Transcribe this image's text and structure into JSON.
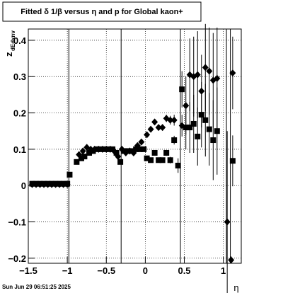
{
  "chart_data": {
    "type": "scatter",
    "title": "Fitted δ 1/β versus η and p for Global kaon+",
    "x_label": "η",
    "y_label": "z",
    "y_label_sub": "dEdxnv",
    "footer": "Sun Jun 29 06:51:25 2025",
    "xlim": [
      -1.5,
      1.23
    ],
    "ylim": [
      -0.214,
      0.431
    ],
    "xticks": [
      {
        "value": -1.5,
        "label": "−1.5"
      },
      {
        "value": -1,
        "label": "−1"
      },
      {
        "value": -0.5,
        "label": "−0.5"
      },
      0,
      0.5,
      1
    ],
    "yticks": [
      {
        "value": -0.2,
        "label": "−0.2"
      },
      {
        "value": -0.1,
        "label": "−0.1"
      },
      0,
      0.1,
      0.2,
      0.3,
      0.4
    ],
    "grid": true,
    "vlines": [
      -0.98,
      -0.31,
      0.45,
      1.04,
      1.09
    ],
    "series": [
      {
        "marker": "square",
        "color": "#000000",
        "x": [
          -1.45,
          -1.4,
          -1.35,
          -1.3,
          -1.25,
          -1.2,
          -1.15,
          -1.1,
          -1.05,
          -1.0,
          -0.97,
          -0.88,
          -0.82,
          -0.78,
          -0.72,
          -0.67,
          -0.62,
          -0.57,
          -0.52,
          -0.47,
          -0.42,
          -0.37,
          -0.32,
          -0.27,
          -0.22,
          -0.17,
          -0.12,
          -0.07,
          -0.02,
          0.02,
          0.07,
          0.12,
          0.17,
          0.22,
          0.27,
          0.32,
          0.37,
          0.42,
          0.47,
          0.52,
          0.57,
          0.62,
          0.67,
          0.72,
          0.77,
          0.82,
          0.87,
          0.92,
          1.12
        ],
        "values": [
          0.005,
          0.005,
          0.005,
          0.005,
          0.005,
          0.005,
          0.005,
          0.005,
          0.005,
          0.005,
          0.03,
          0.065,
          0.075,
          0.08,
          0.09,
          0.095,
          0.1,
          0.1,
          0.1,
          0.1,
          0.1,
          0.09,
          0.065,
          0.095,
          0.095,
          0.095,
          0.1,
          0.1,
          0.1,
          0.075,
          0.07,
          0.09,
          0.07,
          0.07,
          0.09,
          0.07,
          0.125,
          0.055,
          0.265,
          0.16,
          0.16,
          0.17,
          0.135,
          0.195,
          0.18,
          0.155,
          0.125,
          0.15,
          0.068
        ],
        "errors": [
          0.003,
          0.003,
          0.003,
          0.003,
          0.003,
          0.003,
          0.003,
          0.003,
          0.003,
          0.003,
          0.004,
          0.004,
          0.004,
          0.004,
          0.004,
          0.004,
          0.004,
          0.004,
          0.004,
          0.004,
          0.004,
          0.004,
          0.005,
          0.005,
          0.005,
          0.005,
          0.005,
          0.005,
          0.005,
          0.005,
          0.005,
          0.006,
          0.006,
          0.007,
          0.008,
          0.009,
          0.012,
          0.02,
          0.05,
          0.06,
          0.07,
          0.08,
          0.08,
          0.09,
          0.1,
          0.1,
          0.11,
          0.12,
          0.07
        ]
      },
      {
        "marker": "diamond",
        "color": "#000000",
        "x": [
          -1.45,
          -1.4,
          -1.35,
          -1.3,
          -1.25,
          -1.2,
          -1.15,
          -1.1,
          -1.05,
          -1.0,
          -0.85,
          -0.8,
          -0.75,
          -0.7,
          -0.65,
          -0.6,
          -0.55,
          -0.5,
          -0.45,
          -0.4,
          -0.35,
          -0.3,
          -0.25,
          -0.2,
          -0.15,
          -0.1,
          -0.05,
          0.02,
          0.07,
          0.12,
          0.17,
          0.22,
          0.27,
          0.32,
          0.37,
          0.47,
          0.52,
          0.57,
          0.62,
          0.67,
          0.72,
          0.77,
          0.82,
          0.87,
          0.92,
          1.05,
          1.1,
          1.12
        ],
        "values": [
          0.003,
          0.003,
          0.003,
          0.003,
          0.003,
          0.003,
          0.003,
          0.003,
          0.003,
          0.003,
          0.085,
          0.095,
          0.105,
          0.1,
          0.1,
          0.1,
          0.1,
          0.1,
          0.1,
          0.095,
          0.08,
          0.1,
          0.09,
          0.095,
          0.09,
          0.11,
          0.12,
          0.14,
          0.155,
          0.175,
          0.16,
          0.16,
          0.185,
          0.18,
          0.18,
          0.165,
          0.22,
          0.305,
          0.3,
          0.305,
          0.26,
          0.325,
          0.315,
          0.29,
          0.295,
          -0.1,
          -0.205,
          0.31
        ],
        "errors": [
          0.003,
          0.003,
          0.003,
          0.003,
          0.003,
          0.003,
          0.003,
          0.003,
          0.003,
          0.003,
          0.004,
          0.004,
          0.004,
          0.004,
          0.004,
          0.004,
          0.004,
          0.004,
          0.004,
          0.004,
          0.005,
          0.005,
          0.005,
          0.005,
          0.005,
          0.005,
          0.006,
          0.006,
          0.007,
          0.007,
          0.008,
          0.009,
          0.01,
          0.012,
          0.015,
          0.03,
          0.08,
          0.1,
          0.11,
          0.12,
          0.1,
          0.12,
          0.12,
          0.13,
          0.14,
          0.25,
          0.01,
          0.1
        ]
      }
    ]
  }
}
